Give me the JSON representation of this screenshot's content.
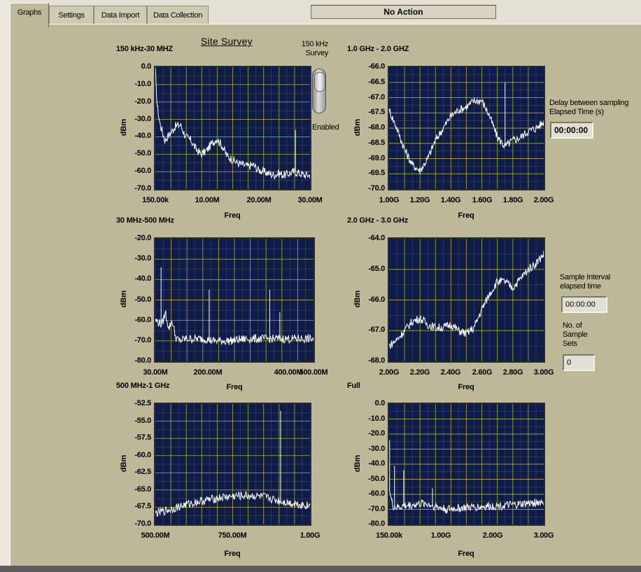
{
  "tabs": [
    {
      "label": "Graphs",
      "active": true
    },
    {
      "label": "Settings",
      "active": false
    },
    {
      "label": "Data Import",
      "active": false
    },
    {
      "label": "Data Collection",
      "active": false
    }
  ],
  "status": "No Action",
  "title": "Site Survey",
  "toggle": {
    "label": "150 kHz\nSurvey",
    "state": "Enabled"
  },
  "delay": {
    "label": "Delay between sampling\nElapsed Time (s)",
    "value": "00:00:00"
  },
  "sample_interval": {
    "label": "Sample Interval\nelapsed time",
    "value": "00:00:00"
  },
  "sample_sets": {
    "label": "No. of\nSample\nSets",
    "value": "0"
  },
  "colors": {
    "plot_bg": "#0e1c4c",
    "grid": "#b8b22a",
    "trace": "#ffffff",
    "panel": "#bdb898"
  },
  "chart_data": [
    {
      "type": "line",
      "title": "150 kHz-30 MHZ",
      "xlabel": "Freq",
      "ylabel": "dBm",
      "xlim": [
        0.15,
        30
      ],
      "ylim": [
        -70,
        0
      ],
      "xticks": [
        "150.00k",
        "10.00M",
        "20.00M",
        "30.00M"
      ],
      "yticks": [
        "0.0",
        "-10.0",
        "-20.0",
        "-30.0",
        "-40.0",
        "-50.0",
        "-60.0",
        "-70.0"
      ],
      "grid": true,
      "x": [
        0.15,
        0.5,
        1,
        2,
        3,
        4,
        5,
        6,
        7,
        8,
        9,
        10,
        11,
        12,
        13,
        14,
        15,
        16,
        17,
        18,
        19,
        20,
        21,
        22,
        23,
        24,
        25,
        26,
        27,
        28,
        29,
        30
      ],
      "y": [
        -2,
        -22,
        -32,
        -42,
        -38,
        -34,
        -33,
        -40,
        -42,
        -47,
        -50,
        -48,
        -44,
        -41,
        -45,
        -51,
        -53,
        -55,
        -56,
        -57,
        -56,
        -59,
        -60,
        -61,
        -62,
        -61,
        -62,
        -61,
        -60,
        -61,
        -62,
        -62
      ],
      "spikes": [
        {
          "x": 27.2,
          "y": -36
        }
      ]
    },
    {
      "type": "line",
      "title": "1.0 GHz - 2.0 GHZ",
      "xlabel": "Freq",
      "ylabel": "dBm",
      "xlim": [
        1.0,
        2.0
      ],
      "ylim": [
        -70,
        -66
      ],
      "xticks": [
        "1.00G",
        "1.20G",
        "1.40G",
        "1.60G",
        "1.80G",
        "2.00G"
      ],
      "yticks": [
        "-66.0",
        "-66.5",
        "-67.0",
        "-67.5",
        "-68.0",
        "-68.5",
        "-69.0",
        "-69.5",
        "-70.0"
      ],
      "grid": true,
      "x": [
        1.0,
        1.05,
        1.1,
        1.15,
        1.2,
        1.25,
        1.3,
        1.35,
        1.4,
        1.45,
        1.5,
        1.55,
        1.6,
        1.65,
        1.7,
        1.75,
        1.8,
        1.85,
        1.9,
        1.95,
        2.0
      ],
      "y": [
        -67.4,
        -68.0,
        -68.7,
        -69.2,
        -69.4,
        -69.0,
        -68.4,
        -68.0,
        -67.6,
        -67.4,
        -67.3,
        -67.1,
        -67.1,
        -67.6,
        -68.3,
        -68.6,
        -68.4,
        -68.3,
        -68.1,
        -68.0,
        -67.8
      ],
      "spikes": [
        {
          "x": 1.75,
          "y": -66.5
        }
      ]
    },
    {
      "type": "line",
      "title": "30 MHz-500 MHz",
      "xlabel": "Freq",
      "ylabel": "dBm",
      "xlim": [
        30,
        500
      ],
      "ylim": [
        -80,
        -20
      ],
      "xticks": [
        "30.00M",
        "200.00M",
        "400.00M",
        "500.00M"
      ],
      "yticks": [
        "-20.0",
        "-30.0",
        "-40.0",
        "-50.0",
        "-60.0",
        "-70.0",
        "-80.0"
      ],
      "grid": true,
      "x": [
        30,
        50,
        60,
        70,
        80,
        90,
        100,
        120,
        150,
        180,
        200,
        250,
        300,
        350,
        400,
        450,
        500
      ],
      "y": [
        -60,
        -62,
        -56,
        -64,
        -60,
        -68,
        -70,
        -69,
        -69,
        -69,
        -70,
        -70,
        -69,
        -69,
        -69,
        -69,
        -69
      ],
      "spikes": [
        {
          "x": 47,
          "y": -34
        },
        {
          "x": 190,
          "y": -45
        },
        {
          "x": 370,
          "y": -45
        },
        {
          "x": 400,
          "y": -56
        }
      ]
    },
    {
      "type": "line",
      "title": "2.0 GHz - 3.0 GHz",
      "xlabel": "Freq",
      "ylabel": "dBm",
      "xlim": [
        2.0,
        3.0
      ],
      "ylim": [
        -68,
        -64
      ],
      "xticks": [
        "2.00G",
        "2.20G",
        "2.40G",
        "2.60G",
        "2.80G",
        "3.00G"
      ],
      "yticks": [
        "-64.0",
        "-65.0",
        "-66.0",
        "-67.0",
        "-68.0"
      ],
      "grid": true,
      "x": [
        2.0,
        2.05,
        2.1,
        2.15,
        2.2,
        2.25,
        2.3,
        2.35,
        2.4,
        2.45,
        2.5,
        2.55,
        2.6,
        2.65,
        2.7,
        2.75,
        2.8,
        2.85,
        2.9,
        2.95,
        3.0
      ],
      "y": [
        -67.5,
        -67.3,
        -67.0,
        -66.7,
        -66.6,
        -66.8,
        -66.9,
        -66.9,
        -66.8,
        -67.0,
        -67.1,
        -66.9,
        -66.3,
        -65.8,
        -65.4,
        -65.4,
        -65.6,
        -65.3,
        -65.0,
        -64.8,
        -64.5
      ],
      "spikes": []
    },
    {
      "type": "line",
      "title": "500 MHz-1 GHz",
      "xlabel": "Freq",
      "ylabel": "dBm",
      "xlim": [
        500,
        1000
      ],
      "ylim": [
        -70,
        -52.5
      ],
      "xticks": [
        "500.00M",
        "750.00M",
        "1.00G"
      ],
      "yticks": [
        "-52.5",
        "-55.0",
        "-57.5",
        "-60.0",
        "-62.5",
        "-65.0",
        "-67.5",
        "-70.0"
      ],
      "grid": true,
      "x": [
        500,
        550,
        600,
        650,
        700,
        750,
        800,
        850,
        900,
        950,
        1000
      ],
      "y": [
        -68.4,
        -67.8,
        -67.1,
        -66.6,
        -66.2,
        -65.9,
        -65.8,
        -66.0,
        -66.6,
        -67.0,
        -67.3
      ],
      "spikes": [
        {
          "x": 905,
          "y": -53.5
        },
        {
          "x": 952,
          "y": -66.5
        }
      ]
    },
    {
      "type": "line",
      "title": "Full",
      "xlabel": "Freq",
      "ylabel": "dBm",
      "xlim": [
        0.15,
        3.0
      ],
      "ylim": [
        -80,
        0
      ],
      "xticks": [
        "150.00k",
        "1.00G",
        "2.00G",
        "3.00G"
      ],
      "yticks": [
        "0.0",
        "-10.0",
        "-20.0",
        "-30.0",
        "-40.0",
        "-50.0",
        "-60.0",
        "-70.0",
        "-80.0"
      ],
      "grid": true,
      "x": [
        0.15,
        0.18,
        0.22,
        0.3,
        0.4,
        0.6,
        0.8,
        1.0,
        1.2,
        1.5,
        2.0,
        2.5,
        3.0
      ],
      "y": [
        -55,
        -62,
        -68,
        -69,
        -68,
        -67,
        -66,
        -68,
        -70,
        -69,
        -68,
        -67,
        -65
      ],
      "spikes": [
        {
          "x": 0.16,
          "y": -24
        },
        {
          "x": 0.25,
          "y": -41
        },
        {
          "x": 0.42,
          "y": -44
        },
        {
          "x": 0.95,
          "y": -56
        }
      ]
    }
  ]
}
